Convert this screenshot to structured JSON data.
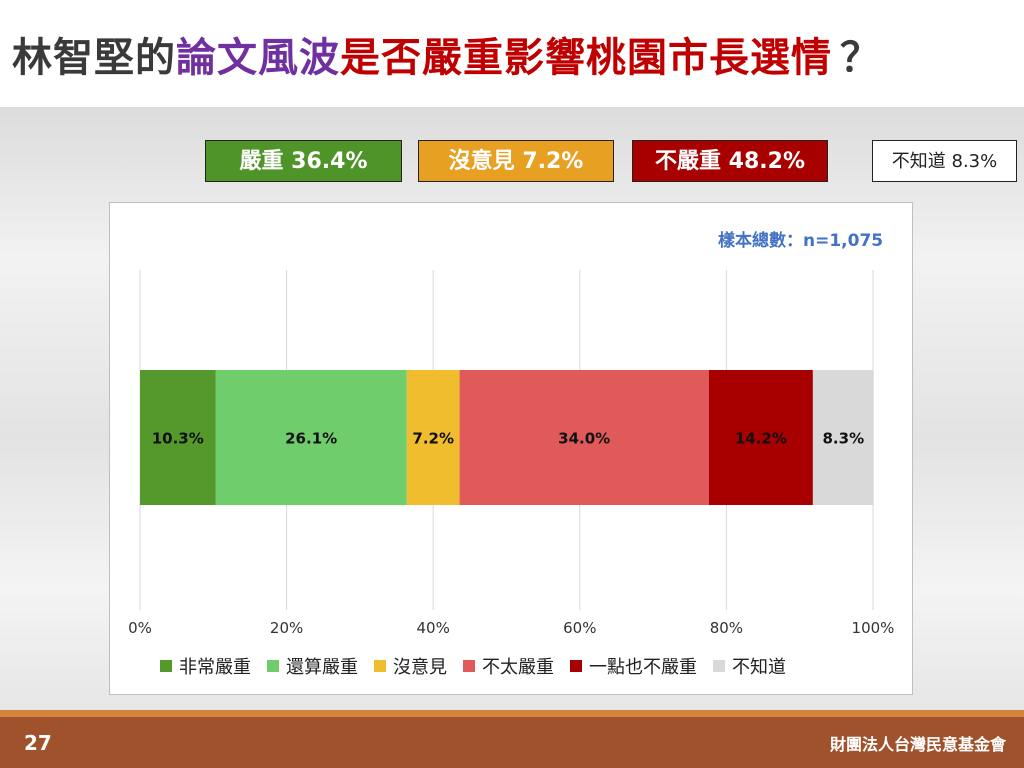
{
  "title": {
    "part1": "林智堅的",
    "part2": "論文風波",
    "part3": "是否嚴重影響桃園市長選情",
    "part4": "？"
  },
  "summary": {
    "serious": "嚴重 36.4%",
    "neutral": "沒意見 7.2%",
    "not_serious": "不嚴重 48.2%",
    "unknown": "不知道 8.3%"
  },
  "sample_note": "樣本總數：n=1,075",
  "chart_data": {
    "type": "bar",
    "orientation": "horizontal-stacked",
    "xlim": [
      0,
      100
    ],
    "x_ticks": [
      "0%",
      "20%",
      "40%",
      "60%",
      "80%",
      "100%"
    ],
    "grid": true,
    "legend_position": "bottom",
    "series": [
      {
        "name": "非常嚴重",
        "value": 10.3,
        "label": "10.3%",
        "color": "#55982c"
      },
      {
        "name": "還算嚴重",
        "value": 26.1,
        "label": "26.1%",
        "color": "#70cd6b"
      },
      {
        "name": "沒意見",
        "value": 7.2,
        "label": "7.2%",
        "color": "#f0bd2f"
      },
      {
        "name": "不太嚴重",
        "value": 34.0,
        "label": "34.0%",
        "color": "#e05a5a"
      },
      {
        "name": "一點也不嚴重",
        "value": 14.2,
        "label": "14.2%",
        "color": "#a80000"
      },
      {
        "name": "不知道",
        "value": 8.3,
        "label": "8.3%",
        "color": "#d9d9d9"
      }
    ]
  },
  "footer": {
    "page_number": "27",
    "organization": "財團法人台灣民意基金會"
  }
}
